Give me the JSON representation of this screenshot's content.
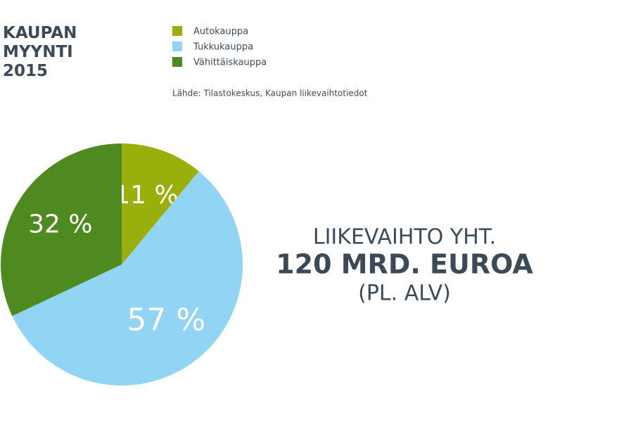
{
  "chart_data": {
    "type": "pie",
    "title": "KAUPAN MYYNTI 2015",
    "categories": [
      "Autokauppa",
      "Tukkukauppa",
      "Vähittäiskauppa"
    ],
    "values": [
      11,
      57,
      32
    ],
    "value_labels": [
      "11 %",
      "57 %",
      "32 %"
    ],
    "colors": [
      "#9aaf0c",
      "#91d4f3",
      "#4f8a21"
    ],
    "source": "Lähde: Tilastokeskus, Kaupan liikevaihtotiedot",
    "annotations": [
      "LIIKEVAIHTO YHT.",
      "120 MRD. EUROA",
      "(PL. ALV)"
    ]
  }
}
